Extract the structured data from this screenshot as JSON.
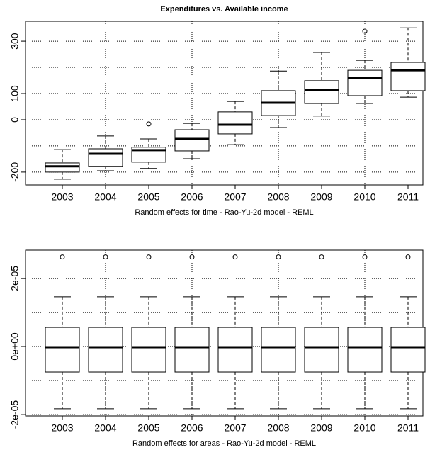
{
  "chart_data": [
    {
      "type": "box",
      "title": "Expenditures vs. Available income",
      "x_label": "Random effects for time - Rao-Yu-2d model - REML",
      "categories": [
        "2003",
        "2004",
        "2005",
        "2006",
        "2007",
        "2008",
        "2009",
        "2010",
        "2011"
      ],
      "boxes": [
        {
          "min": -227,
          "q1": -200,
          "median": -178,
          "q3": -165,
          "max": -114,
          "outliers": []
        },
        {
          "min": -195,
          "q1": -178,
          "median": -130,
          "q3": -111,
          "max": -62,
          "outliers": []
        },
        {
          "min": -186,
          "q1": -162,
          "median": -116,
          "q3": -105,
          "max": -73,
          "outliers": [
            -16
          ]
        },
        {
          "min": -149,
          "q1": -119,
          "median": -73,
          "q3": -38,
          "max": -14,
          "outliers": []
        },
        {
          "min": -95,
          "q1": -54,
          "median": -19,
          "q3": 30,
          "max": 70,
          "outliers": []
        },
        {
          "min": -30,
          "q1": 16,
          "median": 65,
          "q3": 111,
          "max": 186,
          "outliers": []
        },
        {
          "min": 14,
          "q1": 62,
          "median": 114,
          "q3": 149,
          "max": 257,
          "outliers": []
        },
        {
          "min": 62,
          "q1": 92,
          "median": 159,
          "q3": 189,
          "max": 227,
          "outliers": [
            338
          ]
        },
        {
          "min": 86,
          "q1": 111,
          "median": 189,
          "q3": 219,
          "max": 351,
          "outliers": []
        }
      ],
      "ylim": [
        -249,
        376
      ],
      "yticks": [
        -200,
        0,
        100,
        300
      ],
      "ygrid": [
        -200,
        -100,
        0,
        100,
        200,
        300
      ],
      "grid": true
    },
    {
      "type": "box",
      "x_label": "Random effects for areas - Rao-Yu-2d model - REML",
      "categories": [
        "2003",
        "2004",
        "2005",
        "2006",
        "2007",
        "2008",
        "2009",
        "2010",
        "2011"
      ],
      "boxes": [
        {
          "min": -1.83e-05,
          "q1": -7.5e-06,
          "median": -2e-07,
          "q3": 5.6e-06,
          "max": 1.46e-05,
          "outliers": [
            2.63e-05
          ]
        },
        {
          "min": -1.83e-05,
          "q1": -7.5e-06,
          "median": -2e-07,
          "q3": 5.6e-06,
          "max": 1.46e-05,
          "outliers": [
            2.63e-05
          ]
        },
        {
          "min": -1.83e-05,
          "q1": -7.5e-06,
          "median": -2e-07,
          "q3": 5.6e-06,
          "max": 1.46e-05,
          "outliers": [
            2.63e-05
          ]
        },
        {
          "min": -1.83e-05,
          "q1": -7.5e-06,
          "median": -2e-07,
          "q3": 5.6e-06,
          "max": 1.46e-05,
          "outliers": [
            2.63e-05
          ]
        },
        {
          "min": -1.83e-05,
          "q1": -7.5e-06,
          "median": -2e-07,
          "q3": 5.6e-06,
          "max": 1.46e-05,
          "outliers": [
            2.63e-05
          ]
        },
        {
          "min": -1.83e-05,
          "q1": -7.5e-06,
          "median": -2e-07,
          "q3": 5.6e-06,
          "max": 1.46e-05,
          "outliers": [
            2.63e-05
          ]
        },
        {
          "min": -1.83e-05,
          "q1": -7.5e-06,
          "median": -2e-07,
          "q3": 5.6e-06,
          "max": 1.46e-05,
          "outliers": [
            2.63e-05
          ]
        },
        {
          "min": -1.83e-05,
          "q1": -7.5e-06,
          "median": -2e-07,
          "q3": 5.6e-06,
          "max": 1.46e-05,
          "outliers": [
            2.63e-05
          ]
        },
        {
          "min": -1.83e-05,
          "q1": -7.5e-06,
          "median": -2e-07,
          "q3": 5.6e-06,
          "max": 1.46e-05,
          "outliers": [
            2.63e-05
          ]
        }
      ],
      "ylim": [
        -2.04e-05,
        2.83e-05
      ],
      "yticks": [
        {
          "value": -2e-05,
          "label": "-2e-05"
        },
        {
          "value": 0,
          "label": "0e+00"
        },
        {
          "value": 2e-05,
          "label": "2e-05"
        }
      ],
      "ygrid": [
        -2e-05,
        -1e-05,
        0,
        1e-05,
        2e-05
      ],
      "grid": true
    }
  ]
}
